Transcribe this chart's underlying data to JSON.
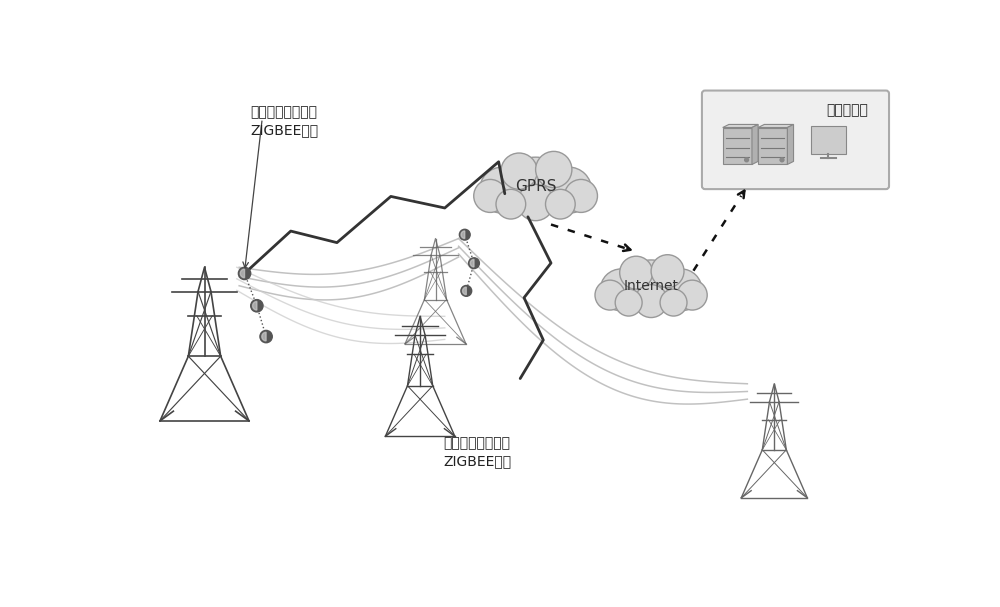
{
  "bg_color": "#ffffff",
  "label_top_left": "故障检测装置及其\nZIGBEE网络",
  "label_bottom_center": "故障检测装置及其\nZIGBEE网络",
  "label_gprs": "GPRS",
  "label_internet": "Internet",
  "label_remote": "远程监控站",
  "tower_color": "#444444",
  "line_color": "#999999",
  "sensor_color": "#555555",
  "cloud_facecolor": "#d8d8d8",
  "cloud_edgecolor": "#999999",
  "arrow_color": "#111111",
  "box_facecolor": "#efefef",
  "box_edgecolor": "#aaaaaa"
}
